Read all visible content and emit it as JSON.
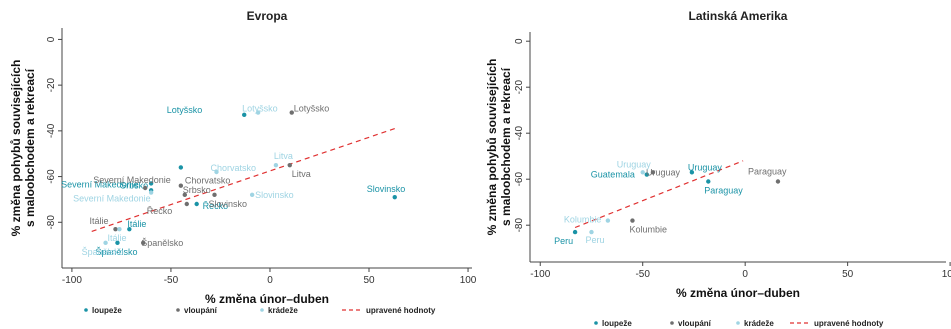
{
  "colors": {
    "loupeze": "#1a93a6",
    "vloupani": "#6f6f6f",
    "kradeze": "#9fd4e3",
    "upravene": "#e03131"
  },
  "legend": {
    "loupeze": "loupeže",
    "vloupani": "vloupání",
    "kradeze": "krádeže",
    "upravene": "upravené hodnoty"
  },
  "chart_data": [
    {
      "type": "scatter",
      "title": "Evropa",
      "xlabel": "% změna únor–duben",
      "ylabel": [
        "% změna pohybů souvisejících",
        "s maloobchodem a rekreací"
      ],
      "xlim": [
        -105,
        102
      ],
      "ylim": [
        -100,
        5
      ],
      "xticks": [
        -100,
        -50,
        0,
        50,
        100
      ],
      "yticks": [
        0,
        -20,
        -40,
        -60,
        -80
      ],
      "grid": false,
      "legend_position": "bottom",
      "series": [
        {
          "name": "loupeže",
          "points": [
            {
              "label": "Lotyšsko",
              "x": -13,
              "y": -33
            },
            {
              "label": "",
              "x": -45,
              "y": -56
            },
            {
              "label": "Severní Makedonie",
              "x": -60,
              "y": -63
            },
            {
              "label": "Srbsko",
              "x": -60,
              "y": -66
            },
            {
              "label": "Řecko",
              "x": -37,
              "y": -72
            },
            {
              "label": "Slovinsko",
              "x": 63,
              "y": -69
            },
            {
              "label": "Itálie",
              "x": -71,
              "y": -83
            },
            {
              "label": "Španělsko",
              "x": -77,
              "y": -89
            }
          ]
        },
        {
          "name": "vloupání",
          "points": [
            {
              "label": "Lotyšsko",
              "x": 11,
              "y": -32
            },
            {
              "label": "Chorvatsko",
              "x": -45,
              "y": -64
            },
            {
              "label": "Litva",
              "x": 10,
              "y": -55
            },
            {
              "label": "Severní Makedonie",
              "x": -63,
              "y": -65
            },
            {
              "label": "Srbsko",
              "x": -43,
              "y": -68
            },
            {
              "label": "Slovinsko",
              "x": -28,
              "y": -68
            },
            {
              "label": "Řecko",
              "x": -42,
              "y": -72
            },
            {
              "label": "Itálie",
              "x": -78,
              "y": -83
            },
            {
              "label": "Španělsko",
              "x": -64,
              "y": -89
            }
          ]
        },
        {
          "name": "krádeže",
          "points": [
            {
              "label": "Lotyšsko",
              "x": -6,
              "y": -32
            },
            {
              "label": "Chorvatsko",
              "x": -27,
              "y": -58
            },
            {
              "label": "Litva",
              "x": 3,
              "y": -55
            },
            {
              "label": "Severní Makedonie",
              "x": -60,
              "y": -67
            },
            {
              "label": "Slovinsko",
              "x": -9,
              "y": -68
            },
            {
              "label": "Itálie",
              "x": -76,
              "y": -83
            },
            {
              "label": "Španělsko",
              "x": -83,
              "y": -89
            }
          ]
        }
      ],
      "trend": {
        "name": "upravené hodnoty",
        "x": [
          -90,
          63
        ],
        "y": [
          -84,
          -39
        ]
      }
    },
    {
      "type": "scatter",
      "title": "Latinská Amerika",
      "xlabel": "% změna únor–duben",
      "ylabel": [
        "% změna pohybů souvisejících",
        "s maloobchodem a rekreací"
      ],
      "xlim": [
        -105,
        98
      ],
      "ylim": [
        -96,
        4
      ],
      "xticks": [
        -100,
        -50,
        0,
        50,
        100
      ],
      "yticks": [
        0,
        -20,
        -40,
        -60,
        -80
      ],
      "grid": false,
      "legend_position": "bottom",
      "series": [
        {
          "name": "loupeže",
          "points": [
            {
              "label": "Uruguay",
              "x": -26,
              "y": -57
            },
            {
              "label": "Guatemala",
              "x": -48,
              "y": -58
            },
            {
              "label": "Paraguay",
              "x": -18,
              "y": -61
            },
            {
              "label": "Peru",
              "x": -83,
              "y": -83
            }
          ]
        },
        {
          "name": "vloupání",
          "points": [
            {
              "label": "Uruguay",
              "x": -45,
              "y": -57
            },
            {
              "label": "Paraguay",
              "x": 16,
              "y": -61
            },
            {
              "label": "Kolumbie",
              "x": -55,
              "y": -78
            }
          ]
        },
        {
          "name": "krádeže",
          "points": [
            {
              "label": "Uruguay",
              "x": -50,
              "y": -57
            },
            {
              "label": "Kolumbie",
              "x": -67,
              "y": -78
            },
            {
              "label": "Peru",
              "x": -75,
              "y": -83
            }
          ]
        }
      ],
      "trend": {
        "name": "upravené hodnoty",
        "x": [
          -83,
          -1
        ],
        "y": [
          -81,
          -52
        ]
      }
    }
  ]
}
